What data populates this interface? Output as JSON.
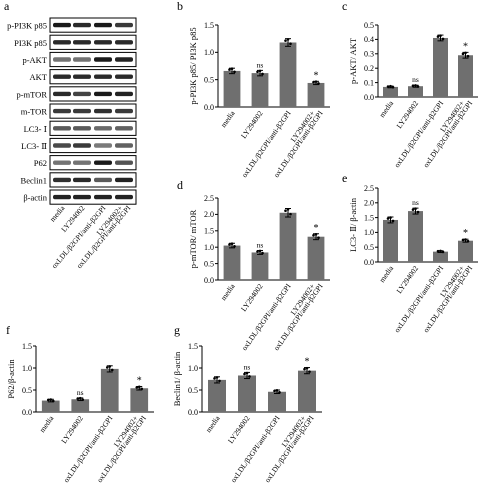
{
  "figure": {
    "panel_labels": [
      "a",
      "b",
      "c",
      "d",
      "e",
      "f",
      "g"
    ],
    "blot": {
      "row_labels": [
        "p-PI3K p85",
        "PI3K p85",
        "p-AKT",
        "AKT",
        "p-mTOR",
        "m-TOR",
        "LC3- Ⅰ",
        "LC3- Ⅱ",
        "P62",
        "Beclin1",
        "β-actin"
      ],
      "lane_labels": [
        "media",
        "LY294002",
        "oxLDL/β2GPI/anti-β2GPI",
        "LY294002+ oxLDL/β2GPI/anti-β2GPI"
      ]
    },
    "colors": {
      "bar": "#6f6f6f",
      "axis": "#000000",
      "band": "#1a1a1a"
    }
  },
  "chart_data": [
    {
      "panel": "b",
      "type": "bar",
      "categories": [
        "media",
        "LY294002",
        "oxLDL/β2GPI/anti-β2GPI",
        "LY294002+ oxLDL/β2GPI/anti-β2GPI"
      ],
      "values": [
        0.66,
        0.62,
        1.18,
        0.44
      ],
      "errors": [
        0.05,
        0.05,
        0.07,
        0.03
      ],
      "significance": [
        "",
        "ns",
        "",
        "*"
      ],
      "ylabel": "p-PI3K p85/ PI3K p85",
      "ylim": [
        0,
        1.5
      ],
      "yticks": [
        "0.0",
        "0.5",
        "1.0",
        "1.5"
      ]
    },
    {
      "panel": "c",
      "type": "bar",
      "categories": [
        "media",
        "LY294002",
        "oxLDL/β2GPI/anti-β2GPI",
        "LY294002+ oxLDL/β2GPI/anti-β2GPI"
      ],
      "values": [
        0.07,
        0.075,
        0.41,
        0.29
      ],
      "errors": [
        0.006,
        0.007,
        0.02,
        0.02
      ],
      "significance": [
        "",
        "ns",
        "",
        "*"
      ],
      "ylabel": "p-AKT/ AKT",
      "ylim": [
        0,
        0.5
      ],
      "yticks": [
        "0.0",
        "0.1",
        "0.2",
        "0.3",
        "0.4",
        "0.5"
      ]
    },
    {
      "panel": "d",
      "type": "bar",
      "categories": [
        "media",
        "LY294002",
        "oxLDL/β2GPI/anti-β2GPI",
        "LY294002+ oxLDL/β2GPI/anti-β2GPI"
      ],
      "values": [
        1.05,
        0.84,
        2.05,
        1.32
      ],
      "errors": [
        0.07,
        0.06,
        0.13,
        0.09
      ],
      "significance": [
        "",
        "ns",
        "",
        "*"
      ],
      "ylabel": "p-mTOR/ mTOR",
      "ylim": [
        0,
        2.5
      ],
      "yticks": [
        "0.0",
        "0.5",
        "1.0",
        "1.5",
        "2.0",
        "2.5"
      ]
    },
    {
      "panel": "e",
      "type": "bar",
      "categories": [
        "media",
        "LY294002",
        "oxLDL/β2GPI/anti-β2GPI",
        "LY294002+ oxLDL/β2GPI/anti-β2GPI"
      ],
      "values": [
        1.42,
        1.72,
        0.35,
        0.72
      ],
      "errors": [
        0.1,
        0.1,
        0.03,
        0.05
      ],
      "significance": [
        "",
        "ns",
        "",
        "*"
      ],
      "ylabel": "LC3- Ⅱ/ β-actin",
      "ylim": [
        0,
        2.5
      ],
      "yticks": [
        "0.0",
        "0.5",
        "1.0",
        "1.5",
        "2.0",
        "2.5"
      ]
    },
    {
      "panel": "f",
      "type": "bar",
      "categories": [
        "media",
        "LY294002",
        "oxLDL/β2GPI/anti-β2GPI",
        "LY294002+ oxLDL/β2GPI/anti-β2GPI"
      ],
      "values": [
        0.26,
        0.29,
        0.98,
        0.54
      ],
      "errors": [
        0.03,
        0.03,
        0.07,
        0.04
      ],
      "significance": [
        "",
        "ns",
        "",
        "*"
      ],
      "ylabel": "P62/β-actin",
      "ylim": [
        0,
        1.5
      ],
      "yticks": [
        "0.0",
        "0.5",
        "1.0",
        "1.5"
      ]
    },
    {
      "panel": "g",
      "type": "bar",
      "categories": [
        "media",
        "LY294002",
        "oxLDL/β2GPI/anti-β2GPI",
        "LY294002+ oxLDL/β2GPI/anti-β2GPI"
      ],
      "values": [
        0.73,
        0.83,
        0.46,
        0.94
      ],
      "errors": [
        0.07,
        0.07,
        0.04,
        0.07
      ],
      "significance": [
        "",
        "ns",
        "",
        "*"
      ],
      "ylabel": "Beclin1/ β-actin",
      "ylim": [
        0,
        1.5
      ],
      "yticks": [
        "0.0",
        "0.5",
        "1.0",
        "1.5"
      ]
    }
  ]
}
